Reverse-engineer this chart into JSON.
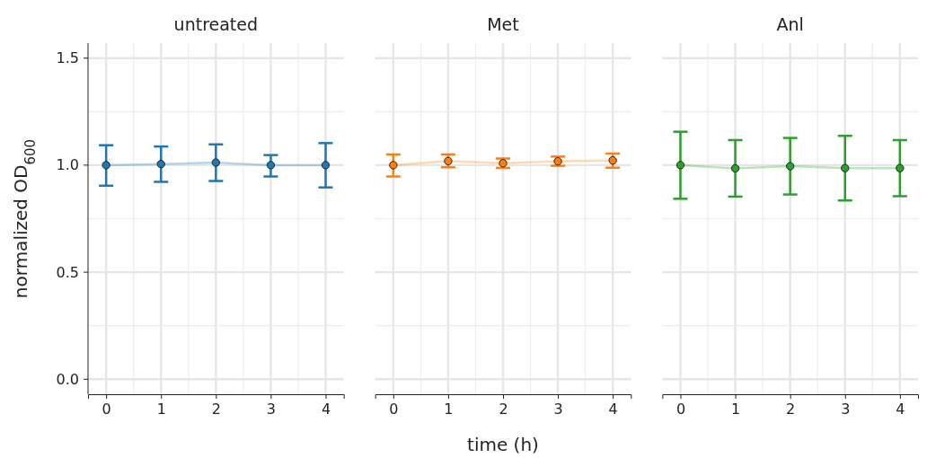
{
  "chart_data": [
    {
      "type": "line",
      "title": "untreated",
      "ylabel": "normalized OD$_{600}$",
      "x": [
        0,
        1,
        2,
        3,
        4
      ],
      "xlim": [
        -0.33,
        4.33
      ],
      "xticks": [
        0,
        1,
        2,
        3,
        4
      ],
      "ylim": [
        -0.07,
        1.57
      ],
      "yticks": [
        {
          "value": 0,
          "label": "0.0"
        },
        0.5,
        {
          "value": 1,
          "label": "1.0"
        },
        1.5
      ],
      "grid": true,
      "marker": "circle",
      "line_style": "solid",
      "series": [
        {
          "color": "#1f77b4",
          "values": [
            1.0,
            1.005,
            1.012,
            1.0,
            1.0
          ],
          "errors": [
            [
              0.904,
              1.093
            ],
            [
              0.922,
              1.087
            ],
            [
              0.926,
              1.097
            ],
            [
              0.947,
              1.047
            ],
            [
              0.896,
              1.103
            ]
          ]
        }
      ]
    },
    {
      "type": "line",
      "title": "Met",
      "xlabel": "time (h)",
      "x": [
        0,
        1,
        2,
        3,
        4
      ],
      "xlim": [
        -0.33,
        4.33
      ],
      "xticks": [
        0,
        1,
        2,
        3,
        4
      ],
      "ylim": [
        -0.07,
        1.57
      ],
      "yticks": [
        0,
        0.5,
        1,
        1.5
      ],
      "grid": true,
      "marker": "circle",
      "line_style": "solid",
      "tick_labels": "x",
      "series": [
        {
          "color": "#ff7f0e",
          "values": [
            1.0,
            1.019,
            1.009,
            1.018,
            1.022
          ],
          "errors": [
            [
              0.947,
              1.05
            ],
            [
              0.99,
              1.05
            ],
            [
              0.987,
              1.031
            ],
            [
              0.997,
              1.04
            ],
            [
              0.988,
              1.054
            ]
          ]
        }
      ]
    },
    {
      "type": "line",
      "title": "Anl",
      "x": [
        0,
        1,
        2,
        3,
        4
      ],
      "xlim": [
        -0.33,
        4.33
      ],
      "xticks": [
        0,
        1,
        2,
        3,
        4
      ],
      "ylim": [
        -0.07,
        1.57
      ],
      "yticks": [
        0,
        0.5,
        1,
        1.5
      ],
      "grid": true,
      "marker": "circle",
      "line_style": "solid",
      "tick_labels": "x",
      "series": [
        {
          "color": "#2ca02c",
          "values": [
            1.0,
            0.985,
            0.995,
            0.986,
            0.986
          ],
          "errors": [
            [
              0.843,
              1.156
            ],
            [
              0.853,
              1.117
            ],
            [
              0.863,
              1.127
            ],
            [
              0.835,
              1.137
            ],
            [
              0.855,
              1.117
            ]
          ]
        }
      ]
    }
  ]
}
